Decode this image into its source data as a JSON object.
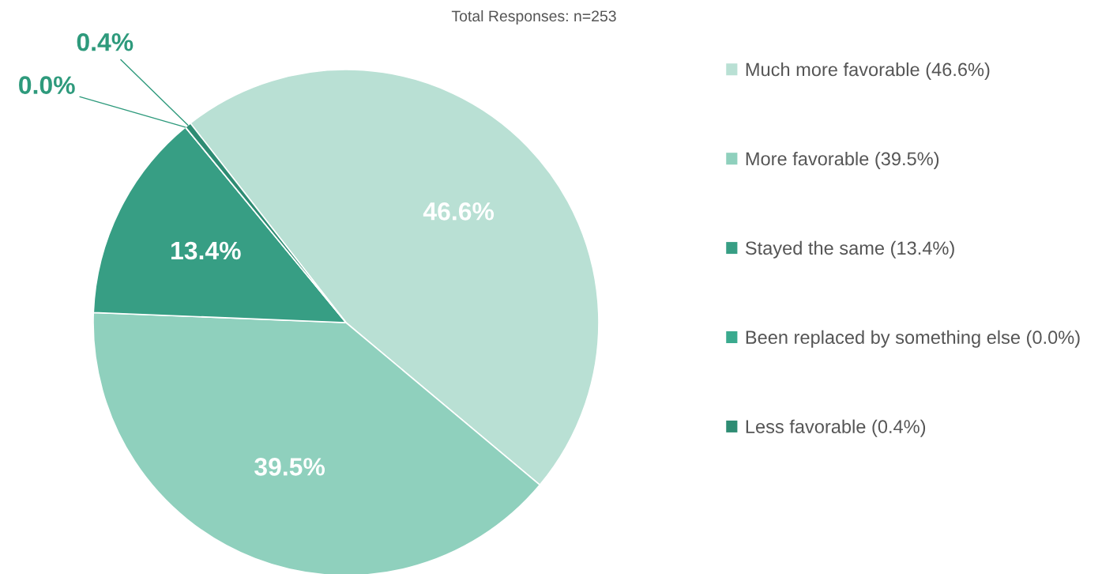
{
  "chart_data": {
    "type": "pie",
    "title": "Total Responses: n=253",
    "categories": [
      "Much more favorable (46.6%)",
      "More favorable (39.5%)",
      "Stayed the same (13.4%)",
      "Been replaced by something else (0.0%)",
      "Less favorable (0.4%)"
    ],
    "values": [
      46.6,
      39.5,
      13.4,
      0.0,
      0.4
    ],
    "colors": [
      "#b9e0d4",
      "#8fd0bd",
      "#379e84",
      "#3aaa8e",
      "#2e8c73"
    ],
    "value_labels": [
      "46.6%",
      "39.5%",
      "13.4%",
      "0.0%",
      "0.4%"
    ],
    "legend": "right"
  }
}
